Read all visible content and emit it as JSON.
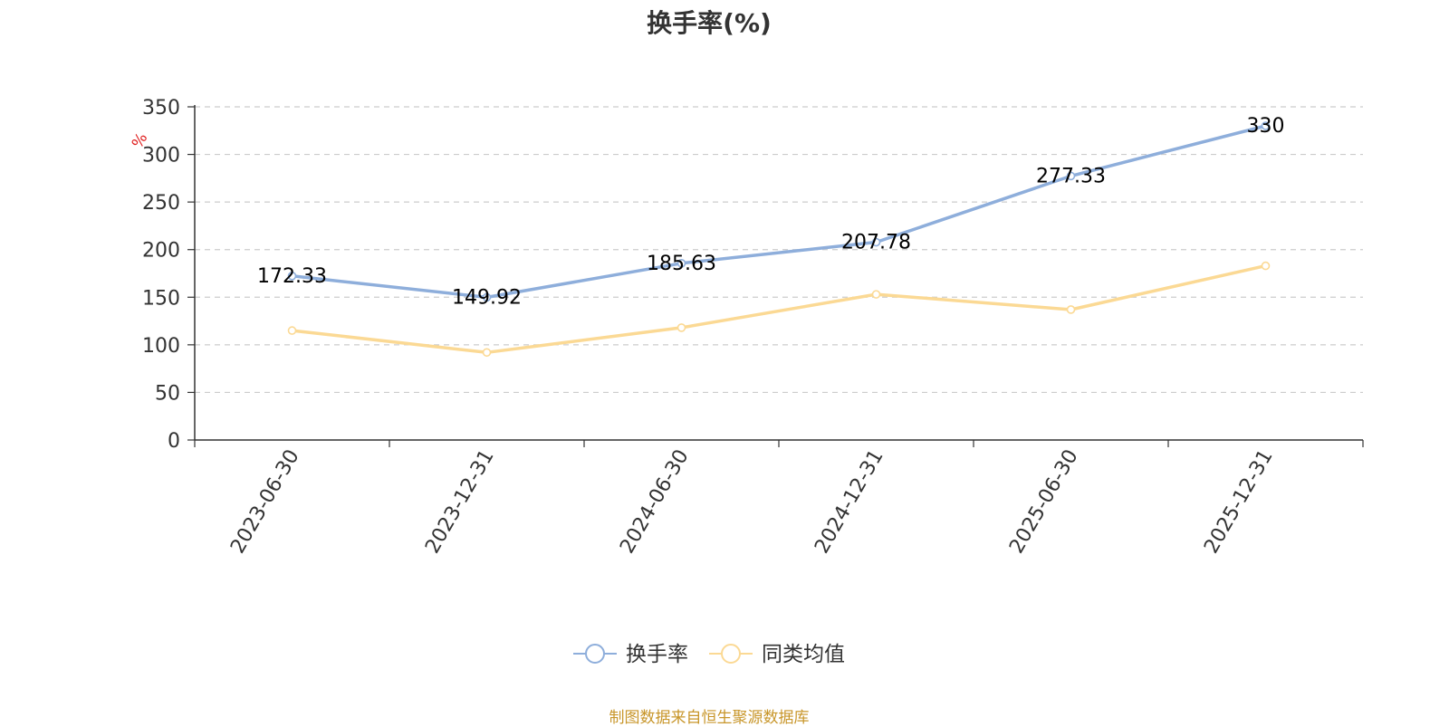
{
  "chart_data": {
    "type": "line",
    "title": "换手率(%)",
    "ylabel": "%",
    "xlabel": "",
    "categories": [
      "2023-06-30",
      "2023-12-31",
      "2024-06-30",
      "2024-12-31",
      "2025-06-30",
      "2025-12-31"
    ],
    "ylim": [
      0,
      350
    ],
    "yticks": [
      0,
      50,
      100,
      150,
      200,
      250,
      300,
      350
    ],
    "grid": true,
    "legend_position": "bottom",
    "series": [
      {
        "name": "换手率",
        "color": "#8eaedb",
        "values": [
          172.33,
          149.92,
          185.63,
          207.78,
          277.33,
          330
        ],
        "labels": [
          "172.33",
          "149.92",
          "185.63",
          "207.78",
          "277.33",
          "330"
        ]
      },
      {
        "name": "同类均值",
        "color": "#fbd994",
        "values": [
          115,
          92,
          118,
          153,
          137,
          183
        ]
      }
    ]
  },
  "source_note": "制图数据来自恒生聚源数据库"
}
